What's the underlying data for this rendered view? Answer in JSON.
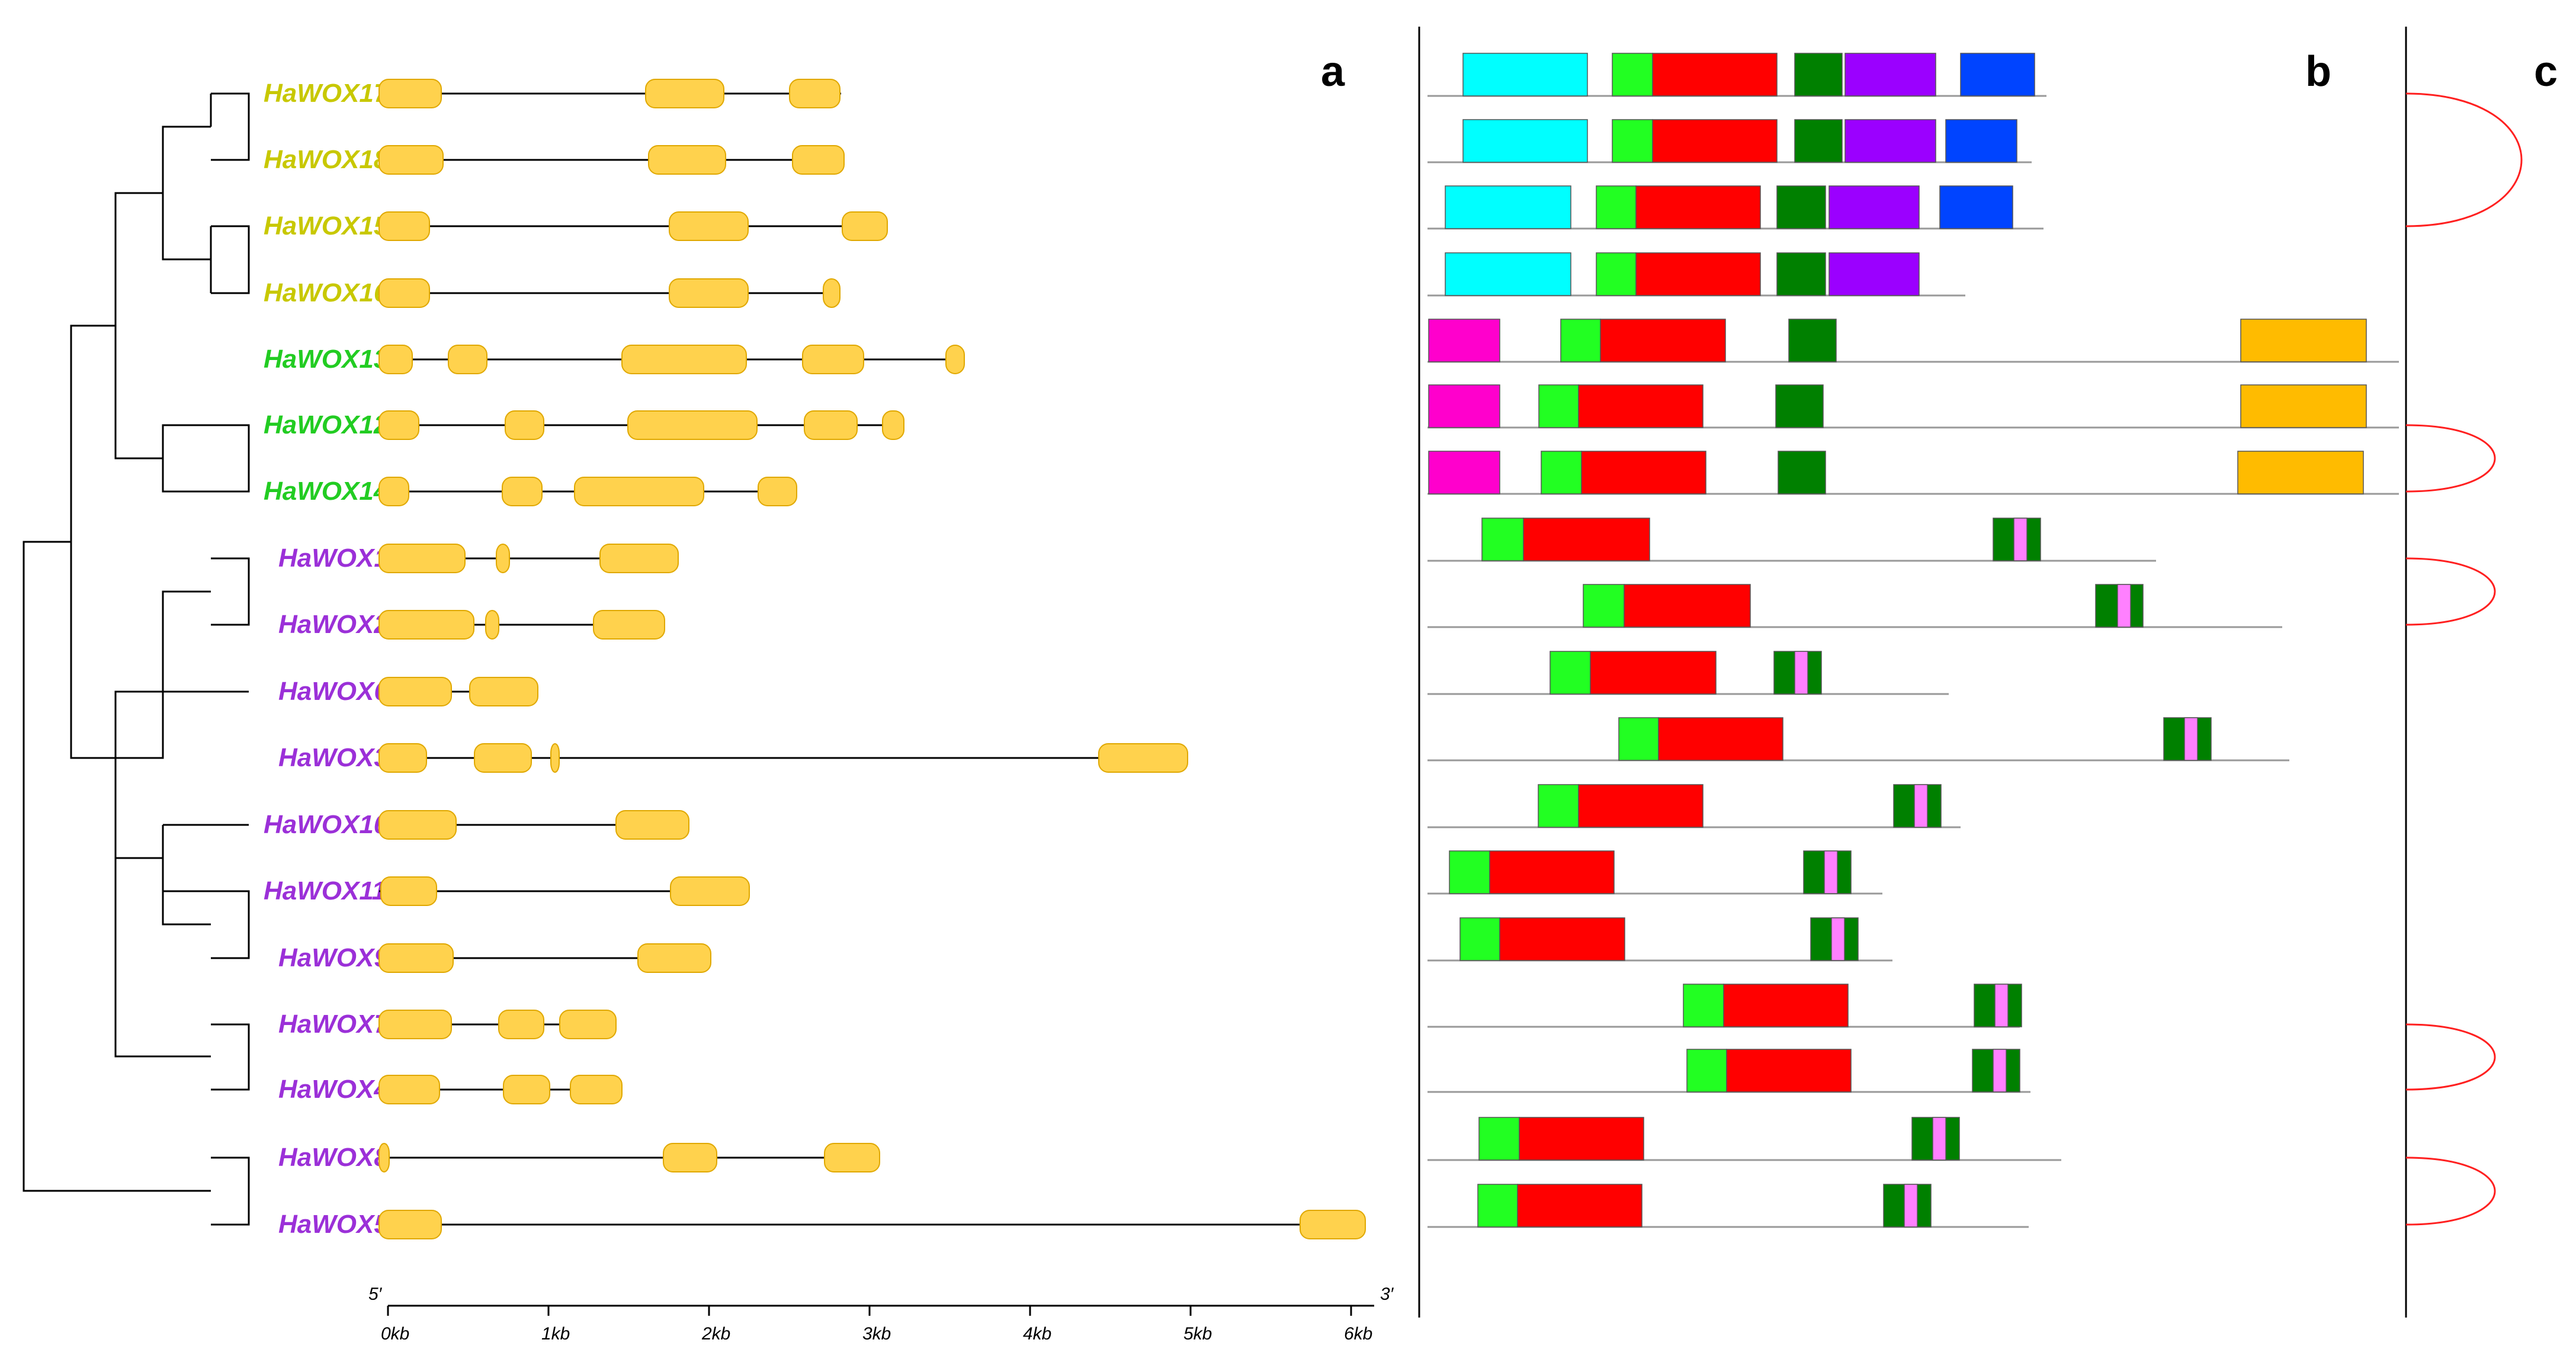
{
  "figure": {
    "panels": [
      "a",
      "b",
      "c"
    ],
    "colors": {
      "group1": "#c8c800",
      "group2": "#22cc22",
      "group3": "#9b30d8",
      "exon": "#ffd24d",
      "exon_edge": "#e0a800",
      "link": "#ff2020"
    },
    "genes": [
      {
        "name": "HaWOX17",
        "group": 1
      },
      {
        "name": "HaWOX18",
        "group": 1
      },
      {
        "name": "HaWOX15",
        "group": 1
      },
      {
        "name": "HaWOX16",
        "group": 1
      },
      {
        "name": "HaWOX13",
        "group": 2
      },
      {
        "name": "HaWOX12",
        "group": 2
      },
      {
        "name": "HaWOX14",
        "group": 2
      },
      {
        "name": "HaWOX1",
        "group": 3
      },
      {
        "name": "HaWOX2",
        "group": 3
      },
      {
        "name": "HaWOX6",
        "group": 3
      },
      {
        "name": "HaWOX3",
        "group": 3
      },
      {
        "name": "HaWOX10",
        "group": 3
      },
      {
        "name": "HaWOX11",
        "group": 3
      },
      {
        "name": "HaWOX9",
        "group": 3
      },
      {
        "name": "HaWOX7",
        "group": 3
      },
      {
        "name": "HaWOX4",
        "group": 3
      },
      {
        "name": "HaWOX8",
        "group": 3
      },
      {
        "name": "HaWOX5",
        "group": 3
      }
    ],
    "axis": {
      "start_label": "5′",
      "end_label": "3′",
      "ticks": [
        "0kb",
        "1kb",
        "2kb",
        "3kb",
        "4kb",
        "5kb",
        "6kb"
      ]
    }
  }
}
